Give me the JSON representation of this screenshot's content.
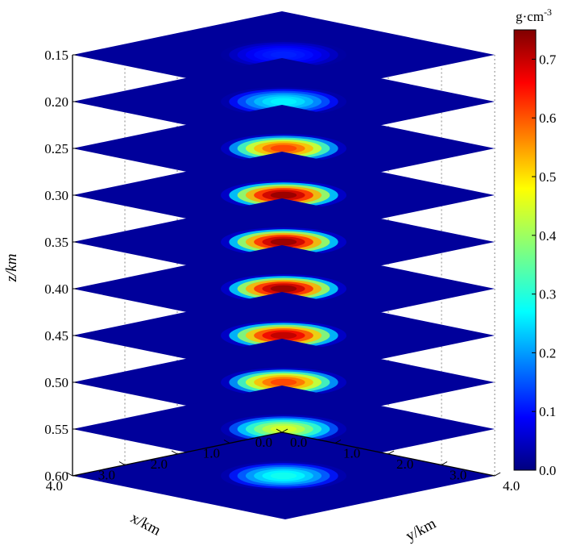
{
  "chart_data": {
    "type": "heatmap",
    "subtype": "3d-stacked-slices",
    "title": "",
    "xlabel": "x/km",
    "ylabel": "y/km",
    "zlabel": "z/km",
    "x_ticks": [
      "0.0",
      "1.0",
      "2.0",
      "3.0",
      "4.0"
    ],
    "y_ticks": [
      "0.0",
      "1.0",
      "2.0",
      "3.0",
      "4.0"
    ],
    "z_ticks": [
      "0.15",
      "0.20",
      "0.25",
      "0.30",
      "0.35",
      "0.40",
      "0.45",
      "0.50",
      "0.55",
      "0.60"
    ],
    "x_range": [
      0,
      4
    ],
    "y_range": [
      0,
      4
    ],
    "z_range": [
      0.15,
      0.6
    ],
    "colorbar": {
      "label": "g·cm",
      "label_exponent": "-3",
      "ticks": [
        "0.0",
        "0.1",
        "0.2",
        "0.3",
        "0.4",
        "0.5",
        "0.6",
        "0.7"
      ],
      "range": [
        0,
        0.75
      ],
      "colormap": "jet"
    },
    "slices": [
      {
        "z": 0.15,
        "peak": 0.12
      },
      {
        "z": 0.2,
        "peak": 0.28
      },
      {
        "z": 0.25,
        "peak": 0.62
      },
      {
        "z": 0.3,
        "peak": 0.75
      },
      {
        "z": 0.35,
        "peak": 0.75
      },
      {
        "z": 0.4,
        "peak": 0.75
      },
      {
        "z": 0.45,
        "peak": 0.72
      },
      {
        "z": 0.5,
        "peak": 0.62
      },
      {
        "z": 0.55,
        "peak": 0.45
      },
      {
        "z": 0.6,
        "peak": 0.3
      }
    ],
    "background_value": 0.02,
    "anomaly_center": {
      "x": 2.0,
      "y": 2.0
    }
  }
}
